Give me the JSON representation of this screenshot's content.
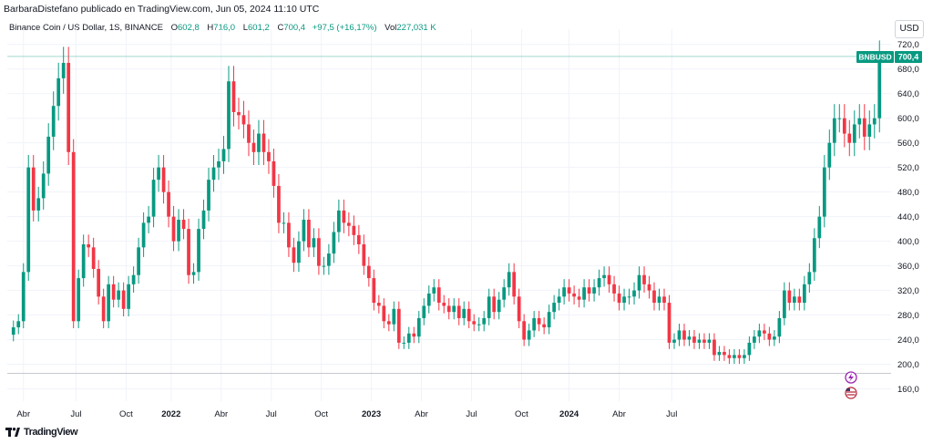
{
  "header": {
    "publish_line": "BarbaraDistefano publicado en TradingView.com, Jun 05, 2024 11:10 UTC",
    "currency_button": "USD"
  },
  "legend": {
    "title": "Binance Coin / US Dollar, 1S, BINANCE",
    "o_key": "O",
    "o_val": "602,8",
    "h_key": "H",
    "h_val": "716,0",
    "l_key": "L",
    "l_val": "601,2",
    "c_key": "C",
    "c_val": "700,4",
    "change": "+97,5 (+16,17%)",
    "vol_key": "Vol",
    "vol_val": "227,031 K"
  },
  "price_label": {
    "symbol": "BNBUSD",
    "value": "700,4"
  },
  "footer": {
    "logo_text": "TradingView"
  },
  "colors": {
    "up": "#089981",
    "down": "#f23645",
    "grid": "#f0f3fa",
    "axis_text": "#131722",
    "last_line": "#089981"
  },
  "icons": [
    "lightning-icon",
    "us-flag-icon",
    "tradingview-logo-icon"
  ],
  "chart_data": {
    "type": "candlestick",
    "symbol": "BNBUSD",
    "interval": "1S",
    "y_axis": {
      "ticks": [
        160,
        200,
        240,
        280,
        320,
        360,
        400,
        440,
        480,
        520,
        560,
        600,
        640,
        680,
        720
      ],
      "tick_labels": [
        "160,0",
        "200,0",
        "240,0",
        "280,0",
        "320,0",
        "360,0",
        "400,0",
        "440,0",
        "480,0",
        "520,0",
        "560,0",
        "600,0",
        "640,0",
        "680,0",
        "720,0"
      ],
      "range": [
        140,
        730
      ]
    },
    "x_axis": {
      "tick_labels": [
        "Abr",
        "Jul",
        "Oct",
        "2022",
        "Abr",
        "Jul",
        "Oct",
        "2023",
        "Abr",
        "Jul",
        "Oct",
        "2024",
        "Abr",
        "Jul"
      ],
      "tick_index": [
        2,
        12.5,
        22.5,
        31.5,
        41.5,
        51.5,
        61.5,
        71.5,
        81.5,
        91.5,
        101.5,
        111,
        121,
        131.5
      ]
    },
    "last_price": 700.4,
    "reference_low": 185,
    "closes": [
      260,
      270,
      350,
      520,
      450,
      470,
      510,
      570,
      620,
      665,
      690,
      545,
      270,
      340,
      395,
      390,
      355,
      310,
      270,
      330,
      305,
      320,
      290,
      330,
      345,
      390,
      430,
      440,
      500,
      520,
      480,
      440,
      400,
      435,
      420,
      345,
      350,
      420,
      450,
      500,
      520,
      530,
      550,
      660,
      610,
      605,
      590,
      560,
      545,
      575,
      545,
      530,
      490,
      430,
      430,
      390,
      365,
      400,
      435,
      390,
      405,
      360,
      360,
      380,
      415,
      450,
      430,
      425,
      410,
      395,
      360,
      340,
      300,
      295,
      270,
      265,
      290,
      235,
      235,
      250,
      245,
      275,
      295,
      315,
      325,
      300,
      295,
      285,
      295,
      275,
      290,
      270,
      265,
      265,
      275,
      310,
      285,
      305,
      325,
      350,
      310,
      270,
      240,
      255,
      275,
      265,
      260,
      285,
      300,
      310,
      325,
      315,
      310,
      305,
      325,
      315,
      325,
      340,
      345,
      330,
      315,
      300,
      310,
      310,
      320,
      345,
      330,
      320,
      300,
      310,
      300,
      235,
      240,
      255,
      240,
      245,
      235,
      240,
      235,
      240,
      215,
      220,
      215,
      210,
      215,
      210,
      215,
      235,
      245,
      255,
      250,
      240,
      245,
      275,
      320,
      300,
      310,
      300,
      330,
      350,
      405,
      440,
      520,
      560,
      600,
      600,
      575,
      560,
      590,
      600,
      570,
      590,
      600,
      700
    ]
  }
}
